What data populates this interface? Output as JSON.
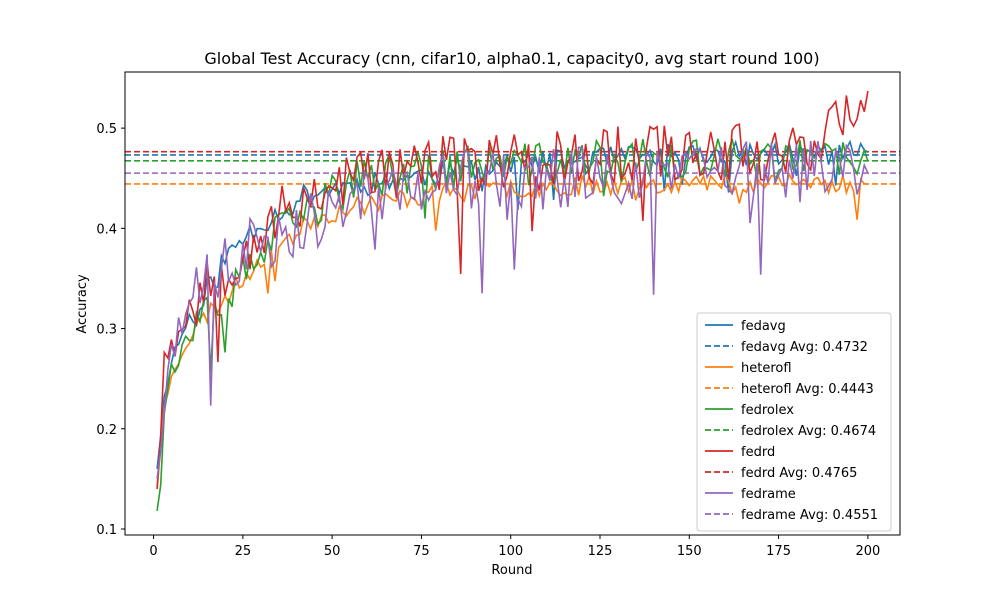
{
  "chart_data": {
    "type": "line",
    "title": "Global Test Accuracy (cnn, cifar10, alpha0.1, capacity0, avg start round 100)",
    "xlabel": "Round",
    "ylabel": "Accuracy",
    "xlim": [
      -8,
      209
    ],
    "ylim": [
      0.094,
      0.556
    ],
    "xticks": [
      0,
      25,
      50,
      75,
      100,
      125,
      150,
      175,
      200
    ],
    "yticks": [
      0.1,
      0.2,
      0.3,
      0.4,
      0.5
    ],
    "ytick_labels": [
      "0.1",
      "0.2",
      "0.3",
      "0.4",
      "0.5"
    ],
    "legend_position": "lower-right",
    "series": [
      {
        "name": "fedavg",
        "color": "#1f77b4",
        "avg": 0.4732,
        "avg_label": "fedavg Avg: 0.4732",
        "keypoints": [
          [
            1,
            0.16
          ],
          [
            3,
            0.23
          ],
          [
            5,
            0.27
          ],
          [
            10,
            0.31
          ],
          [
            15,
            0.34
          ],
          [
            20,
            0.37
          ],
          [
            25,
            0.39
          ],
          [
            30,
            0.405
          ],
          [
            35,
            0.415
          ],
          [
            40,
            0.43
          ],
          [
            45,
            0.435
          ],
          [
            50,
            0.44
          ],
          [
            60,
            0.445
          ],
          [
            70,
            0.45
          ],
          [
            80,
            0.455
          ],
          [
            90,
            0.46
          ],
          [
            100,
            0.463
          ],
          [
            120,
            0.468
          ],
          [
            140,
            0.472
          ],
          [
            160,
            0.474
          ],
          [
            180,
            0.475
          ],
          [
            200,
            0.476
          ]
        ],
        "noise": 0.012,
        "seed": 11
      },
      {
        "name": "heterofl",
        "color": "#ff7f0e",
        "avg": 0.4443,
        "avg_label": "heterofl Avg: 0.4443",
        "keypoints": [
          [
            1,
            0.14
          ],
          [
            3,
            0.22
          ],
          [
            5,
            0.255
          ],
          [
            10,
            0.29
          ],
          [
            15,
            0.315
          ],
          [
            20,
            0.33
          ],
          [
            25,
            0.35
          ],
          [
            30,
            0.37
          ],
          [
            35,
            0.385
          ],
          [
            40,
            0.395
          ],
          [
            45,
            0.41
          ],
          [
            50,
            0.415
          ],
          [
            60,
            0.425
          ],
          [
            70,
            0.43
          ],
          [
            80,
            0.435
          ],
          [
            90,
            0.438
          ],
          [
            100,
            0.44
          ],
          [
            120,
            0.443
          ],
          [
            140,
            0.445
          ],
          [
            160,
            0.445
          ],
          [
            180,
            0.445
          ],
          [
            200,
            0.444
          ]
        ],
        "noise": 0.01,
        "seed": 23
      },
      {
        "name": "fedrolex",
        "color": "#2ca02c",
        "avg": 0.4674,
        "avg_label": "fedrolex Avg: 0.4674",
        "keypoints": [
          [
            1,
            0.118
          ],
          [
            3,
            0.22
          ],
          [
            5,
            0.26
          ],
          [
            10,
            0.29
          ],
          [
            15,
            0.31
          ],
          [
            20,
            0.33
          ],
          [
            25,
            0.35
          ],
          [
            30,
            0.375
          ],
          [
            35,
            0.395
          ],
          [
            40,
            0.405
          ],
          [
            45,
            0.42
          ],
          [
            50,
            0.435
          ],
          [
            60,
            0.45
          ],
          [
            70,
            0.455
          ],
          [
            80,
            0.46
          ],
          [
            90,
            0.462
          ],
          [
            100,
            0.463
          ],
          [
            120,
            0.466
          ],
          [
            140,
            0.468
          ],
          [
            160,
            0.468
          ],
          [
            180,
            0.467
          ],
          [
            200,
            0.467
          ]
        ],
        "noise": 0.022,
        "seed": 37
      },
      {
        "name": "fedrd",
        "color": "#d62728",
        "avg": 0.4765,
        "avg_label": "fedrd Avg: 0.4765",
        "keypoints": [
          [
            1,
            0.14
          ],
          [
            3,
            0.27
          ],
          [
            5,
            0.29
          ],
          [
            10,
            0.32
          ],
          [
            15,
            0.345
          ],
          [
            20,
            0.36
          ],
          [
            25,
            0.38
          ],
          [
            30,
            0.395
          ],
          [
            35,
            0.41
          ],
          [
            40,
            0.425
          ],
          [
            45,
            0.435
          ],
          [
            50,
            0.445
          ],
          [
            60,
            0.455
          ],
          [
            70,
            0.46
          ],
          [
            80,
            0.463
          ],
          [
            90,
            0.465
          ],
          [
            100,
            0.468
          ],
          [
            120,
            0.472
          ],
          [
            140,
            0.476
          ],
          [
            160,
            0.477
          ],
          [
            180,
            0.478
          ],
          [
            198,
            0.52
          ],
          [
            200,
            0.537
          ]
        ],
        "noise": 0.03,
        "seed": 53
      },
      {
        "name": "fedrame",
        "color": "#9467bd",
        "avg": 0.4551,
        "avg_label": "fedrame Avg: 0.4551",
        "keypoints": [
          [
            1,
            0.15
          ],
          [
            3,
            0.21
          ],
          [
            5,
            0.28
          ],
          [
            10,
            0.32
          ],
          [
            15,
            0.345
          ],
          [
            20,
            0.36
          ],
          [
            25,
            0.375
          ],
          [
            30,
            0.39
          ],
          [
            35,
            0.395
          ],
          [
            40,
            0.405
          ],
          [
            45,
            0.41
          ],
          [
            50,
            0.42
          ],
          [
            60,
            0.43
          ],
          [
            70,
            0.44
          ],
          [
            80,
            0.445
          ],
          [
            90,
            0.448
          ],
          [
            100,
            0.45
          ],
          [
            120,
            0.452
          ],
          [
            140,
            0.455
          ],
          [
            160,
            0.456
          ],
          [
            180,
            0.456
          ],
          [
            200,
            0.455
          ]
        ],
        "noise": 0.032,
        "seed": 71
      }
    ]
  }
}
